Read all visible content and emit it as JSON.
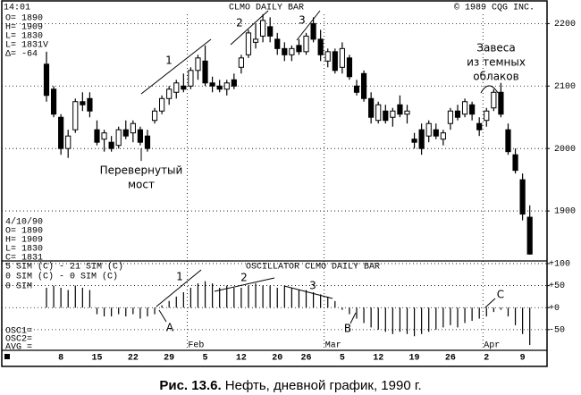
{
  "header": {
    "time": "14:01",
    "copyright": "© 1989 CQG INC."
  },
  "caption": {
    "label": "Рис. 13.6.",
    "text": "Нефть, дневной график, 1990 г."
  },
  "chart_data": [
    {
      "type": "candlestick",
      "title": "CLMO DAILY BAR",
      "categories": [
        null,
        null,
        "8",
        null,
        null,
        null,
        null,
        "15",
        null,
        null,
        null,
        null,
        "22",
        null,
        null,
        null,
        null,
        "29",
        null,
        null,
        null,
        null,
        "5",
        null,
        null,
        null,
        null,
        "12",
        null,
        null,
        null,
        null,
        "20",
        null,
        null,
        null,
        "26",
        null,
        null,
        null,
        null,
        "5",
        null,
        null,
        null,
        null,
        "12",
        null,
        null,
        null,
        null,
        "19",
        null,
        null,
        null,
        null,
        "26",
        null,
        null,
        null,
        null,
        "2",
        null,
        null,
        null,
        null,
        "9",
        null
      ],
      "months": [
        null,
        null,
        null,
        null,
        null,
        null,
        null,
        null,
        null,
        null,
        null,
        null,
        null,
        null,
        null,
        null,
        null,
        null,
        null,
        null,
        "Feb",
        null,
        null,
        null,
        null,
        null,
        null,
        null,
        null,
        null,
        null,
        null,
        null,
        null,
        null,
        null,
        null,
        null,
        null,
        "Mar",
        null,
        null,
        null,
        null,
        null,
        null,
        null,
        null,
        null,
        null,
        null,
        null,
        null,
        null,
        null,
        null,
        null,
        null,
        null,
        null,
        null,
        "Apr",
        null,
        null,
        null,
        null,
        null,
        null
      ],
      "open": [
        2135,
        2095,
        2050,
        2000,
        2030,
        2075,
        2080,
        2030,
        2015,
        2010,
        2005,
        2030,
        2025,
        2030,
        2020,
        2045,
        2060,
        2080,
        2090,
        2100,
        2100,
        2125,
        2140,
        2105,
        2100,
        2095,
        2110,
        2130,
        2150,
        2170,
        2180,
        2195,
        2175,
        2160,
        2150,
        2165,
        2155,
        2200,
        2175,
        2140,
        2155,
        2130,
        2145,
        2100,
        2120,
        2080,
        2045,
        2060,
        2050,
        2070,
        2055,
        2015,
        2030,
        2020,
        2030,
        2015,
        2040,
        2060,
        2055,
        2070,
        2040,
        2045,
        2065,
        2090,
        2030,
        1990,
        1950,
        1890
      ],
      "high": [
        2155,
        2100,
        2055,
        2030,
        2080,
        2090,
        2090,
        2045,
        2030,
        2020,
        2035,
        2045,
        2045,
        2035,
        2030,
        2065,
        2085,
        2100,
        2110,
        2120,
        2130,
        2150,
        2165,
        2115,
        2110,
        2110,
        2120,
        2150,
        2190,
        2200,
        2215,
        2210,
        2185,
        2170,
        2165,
        2175,
        2185,
        2210,
        2190,
        2160,
        2160,
        2170,
        2150,
        2110,
        2125,
        2090,
        2075,
        2070,
        2065,
        2085,
        2070,
        2025,
        2040,
        2045,
        2040,
        2030,
        2065,
        2070,
        2080,
        2075,
        2050,
        2065,
        2095,
        2105,
        2040,
        2000,
        1960,
        1909
      ],
      "low": [
        2075,
        2050,
        1990,
        1985,
        2025,
        2060,
        2050,
        2005,
        1995,
        1995,
        2000,
        2015,
        2010,
        2005,
        1995,
        2040,
        2055,
        2070,
        2080,
        2090,
        2095,
        2110,
        2100,
        2090,
        2090,
        2085,
        2095,
        2120,
        2145,
        2160,
        2170,
        2170,
        2150,
        2140,
        2140,
        2150,
        2150,
        2170,
        2140,
        2130,
        2120,
        2120,
        2110,
        2085,
        2075,
        2040,
        2040,
        2040,
        2035,
        2050,
        2040,
        2000,
        1990,
        2010,
        2015,
        2005,
        2030,
        2045,
        2050,
        2045,
        2020,
        2035,
        2060,
        2050,
        1990,
        1960,
        1885,
        1830
      ],
      "close": [
        2085,
        2055,
        2000,
        2020,
        2075,
        2070,
        2060,
        2010,
        2025,
        2000,
        2030,
        2020,
        2040,
        2010,
        2000,
        2060,
        2080,
        2095,
        2105,
        2095,
        2125,
        2145,
        2105,
        2100,
        2095,
        2105,
        2100,
        2145,
        2185,
        2175,
        2205,
        2180,
        2160,
        2150,
        2160,
        2155,
        2180,
        2175,
        2150,
        2155,
        2125,
        2160,
        2115,
        2090,
        2080,
        2050,
        2070,
        2045,
        2060,
        2055,
        2060,
        2010,
        2000,
        2040,
        2020,
        2025,
        2060,
        2050,
        2075,
        2055,
        2030,
        2060,
        2090,
        2055,
        1995,
        1965,
        1895,
        1831
      ],
      "ylim": [
        1820,
        2212
      ],
      "yticks": [
        1900,
        2000,
        2100,
        2200
      ],
      "grid": true,
      "up_color": "#ffffff",
      "down_color": "#000000",
      "info_top": [
        "O= 1890",
        "H= 1909",
        "L= 1830",
        "L= 1831V",
        "Δ= -64"
      ],
      "info_mid": [
        "4/10/90",
        "O= 1890",
        "H= 1909",
        "L= 1830",
        "C= 1831"
      ],
      "annotations": [
        "1",
        "2",
        "3",
        "Перевернутый",
        "мост",
        "Завеса",
        "из темных",
        "облаков"
      ]
    },
    {
      "type": "bar",
      "title": "OSCILLATOR CLMO DAILY BAR",
      "legend": [
        "5 SIM (C) - 21 SIM (C)",
        "0 SIM (C) - 0 SIM (C)",
        "0 SIM"
      ],
      "values": [
        45,
        50,
        45,
        40,
        50,
        45,
        40,
        -15,
        -20,
        -20,
        -15,
        -20,
        -15,
        -25,
        -20,
        -15,
        5,
        15,
        25,
        35,
        45,
        55,
        60,
        55,
        45,
        50,
        45,
        45,
        50,
        55,
        50,
        50,
        45,
        50,
        45,
        40,
        40,
        35,
        30,
        25,
        15,
        -5,
        -15,
        -25,
        -35,
        -45,
        -50,
        -55,
        -60,
        -55,
        -60,
        -65,
        -60,
        -55,
        -50,
        -45,
        -40,
        -45,
        -35,
        -30,
        -25,
        -20,
        -10,
        -5,
        -20,
        -40,
        -60,
        -85
      ],
      "color": "#000000",
      "ylim": [
        -97,
        106
      ],
      "yticks": [
        {
          "value": 100,
          "label": "+100"
        },
        {
          "value": 50,
          "label": "+50"
        },
        {
          "value": 0,
          "label": "+0"
        },
        -50
      ],
      "grid": true,
      "annotations": [
        "1",
        "2",
        "3",
        "A",
        "B",
        "C"
      ],
      "readouts": [
        "OSC1=",
        "OSC2=",
        "AVG ="
      ]
    }
  ]
}
